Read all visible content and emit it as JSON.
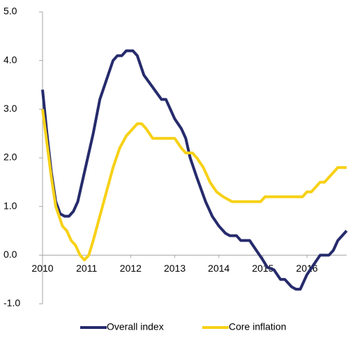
{
  "chart_data": {
    "type": "line",
    "xlim": [
      2010,
      2016.9
    ],
    "xticks": [
      2010,
      2011,
      2012,
      2013,
      2014,
      2015,
      2016
    ],
    "ylim": [
      -1,
      5
    ],
    "yticks": [
      {
        "value": -1,
        "label": "-1.0"
      },
      {
        "value": 0,
        "label": "0.0"
      },
      {
        "value": 1,
        "label": "1.0"
      },
      {
        "value": 2,
        "label": "2.0"
      },
      {
        "value": 3,
        "label": "3.0"
      },
      {
        "value": 4,
        "label": "4.0"
      },
      {
        "value": 5,
        "label": "5.0"
      }
    ],
    "legend": "bottom",
    "series": [
      {
        "name": "Overall index",
        "color": "#262b6c",
        "x": [
          2010.0,
          2010.1,
          2010.2,
          2010.3,
          2010.4,
          2010.5,
          2010.6,
          2010.7,
          2010.8,
          2010.9,
          2011.0,
          2011.15,
          2011.3,
          2011.45,
          2011.6,
          2011.7,
          2011.8,
          2011.9,
          2012.05,
          2012.15,
          2012.3,
          2012.5,
          2012.7,
          2012.8,
          2012.9,
          2013.0,
          2013.15,
          2013.25,
          2013.35,
          2013.5,
          2013.7,
          2013.85,
          2014.0,
          2014.15,
          2014.25,
          2014.4,
          2014.5,
          2014.7,
          2014.85,
          2015.0,
          2015.1,
          2015.25,
          2015.4,
          2015.5,
          2015.65,
          2015.75,
          2015.85,
          2016.0,
          2016.15,
          2016.3,
          2016.5,
          2016.6,
          2016.7,
          2016.9
        ],
        "values": [
          3.4,
          2.5,
          1.7,
          1.1,
          0.85,
          0.8,
          0.8,
          0.9,
          1.1,
          1.5,
          1.9,
          2.5,
          3.2,
          3.6,
          4.0,
          4.1,
          4.1,
          4.2,
          4.2,
          4.1,
          3.7,
          3.45,
          3.2,
          3.2,
          3.0,
          2.8,
          2.6,
          2.4,
          2.0,
          1.6,
          1.1,
          0.8,
          0.6,
          0.45,
          0.4,
          0.4,
          0.3,
          0.3,
          0.1,
          -0.1,
          -0.25,
          -0.3,
          -0.5,
          -0.5,
          -0.65,
          -0.7,
          -0.7,
          -0.4,
          -0.2,
          0.0,
          0.0,
          0.1,
          0.3,
          0.5
        ]
      },
      {
        "name": "Core inflation",
        "color": "#f7d117",
        "x": [
          2010.0,
          2010.1,
          2010.2,
          2010.3,
          2010.45,
          2010.55,
          2010.65,
          2010.75,
          2010.85,
          2010.95,
          2011.05,
          2011.15,
          2011.3,
          2011.45,
          2011.6,
          2011.75,
          2011.9,
          2012.05,
          2012.15,
          2012.25,
          2012.35,
          2012.5,
          2012.7,
          2012.9,
          2013.0,
          2013.15,
          2013.25,
          2013.4,
          2013.5,
          2013.65,
          2013.8,
          2013.95,
          2014.1,
          2014.2,
          2014.3,
          2014.5,
          2014.7,
          2014.95,
          2015.05,
          2015.3,
          2015.6,
          2015.9,
          2016.0,
          2016.1,
          2016.2,
          2016.3,
          2016.4,
          2016.5,
          2016.6,
          2016.7,
          2016.9
        ],
        "values": [
          3.0,
          2.3,
          1.6,
          1.0,
          0.6,
          0.5,
          0.3,
          0.2,
          0.0,
          -0.1,
          0.0,
          0.3,
          0.8,
          1.3,
          1.8,
          2.2,
          2.45,
          2.6,
          2.7,
          2.7,
          2.6,
          2.4,
          2.4,
          2.4,
          2.4,
          2.2,
          2.1,
          2.1,
          2.0,
          1.8,
          1.5,
          1.3,
          1.2,
          1.15,
          1.1,
          1.1,
          1.1,
          1.1,
          1.2,
          1.2,
          1.2,
          1.2,
          1.3,
          1.3,
          1.4,
          1.5,
          1.5,
          1.6,
          1.7,
          1.8,
          1.8
        ]
      }
    ]
  }
}
